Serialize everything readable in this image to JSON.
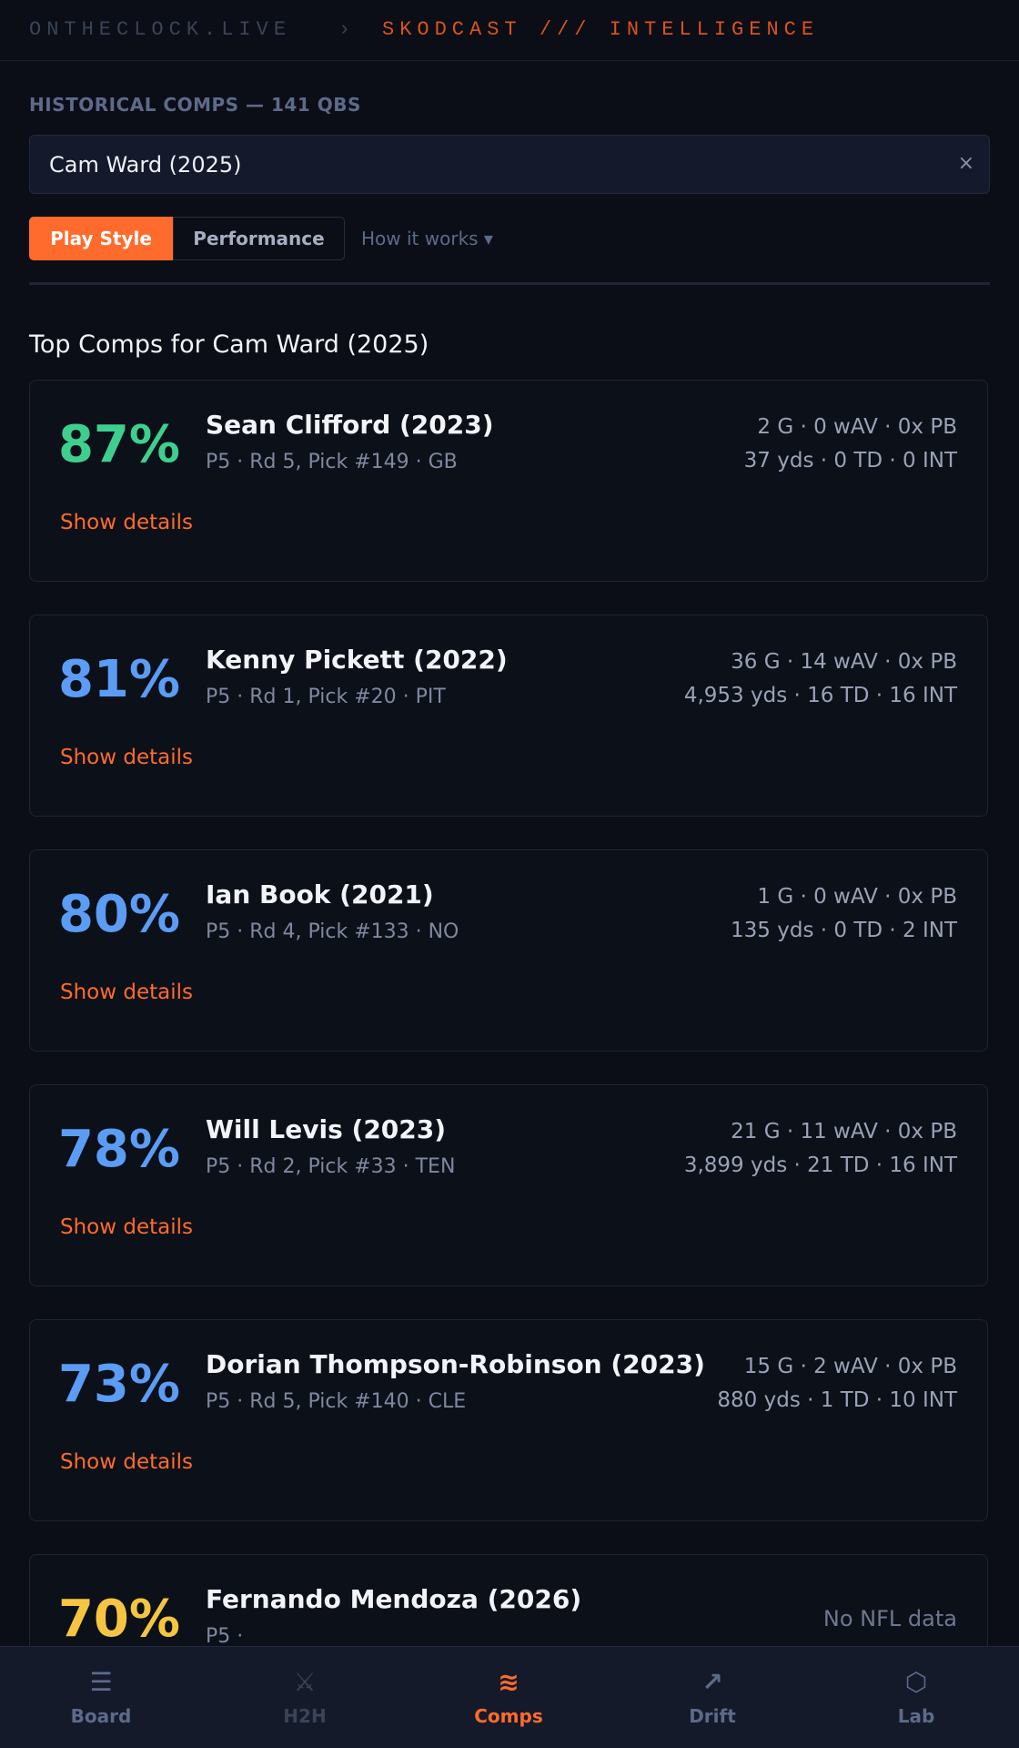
{
  "header": {
    "site": "ONTHECLOCK.LIVE",
    "separator": "›",
    "section": "SKODCAST /// INTELLIGENCE"
  },
  "search": {
    "label": "HISTORICAL COMPS — 141 QBS",
    "value": "Cam Ward (2025)",
    "clear": "×"
  },
  "tabs": {
    "items": [
      "Play Style",
      "Performance"
    ],
    "active": 0,
    "help": "How it works ▾"
  },
  "section_title": "Top Comps for Cam Ward (2025)",
  "comps": [
    {
      "score": "87%",
      "score_color": "#3ecf8e",
      "name": "Sean Clifford (2023)",
      "draft": "P5 · Rd 5, Pick #149 · GB",
      "stats": [
        "2 G · 0 wAV · 0x PB",
        "37 yds · 0 TD · 0 INT"
      ],
      "action": "Show details"
    },
    {
      "score": "81%",
      "score_color": "#5b9cf5",
      "name": "Kenny Pickett (2022)",
      "draft": "P5 · Rd 1, Pick #20 · PIT",
      "stats": [
        "36 G · 14 wAV · 0x PB",
        "4,953 yds · 16 TD · 16 INT"
      ],
      "action": "Show details"
    },
    {
      "score": "80%",
      "score_color": "#5b9cf5",
      "name": "Ian Book (2021)",
      "draft": "P5 · Rd 4, Pick #133 · NO",
      "stats": [
        "1 G · 0 wAV · 0x PB",
        "135 yds · 0 TD · 2 INT"
      ],
      "action": "Show details"
    },
    {
      "score": "78%",
      "score_color": "#5b9cf5",
      "name": "Will Levis (2023)",
      "draft": "P5 · Rd 2, Pick #33 · TEN",
      "stats": [
        "21 G · 11 wAV · 0x PB",
        "3,899 yds · 21 TD · 16 INT"
      ],
      "action": "Show details"
    },
    {
      "score": "73%",
      "score_color": "#5b9cf5",
      "name": "Dorian Thompson-Robinson (2023)",
      "draft": "P5 · Rd 5, Pick #140 · CLE",
      "stats": [
        "15 G · 2 wAV · 0x PB",
        "880 yds · 1 TD · 10 INT"
      ],
      "action": "Show details"
    },
    {
      "score": "70%",
      "score_color": "#f5c542",
      "name": "Fernando Mendoza (2026)",
      "draft": "P5 ·",
      "stats": [
        "No NFL data"
      ]
    }
  ],
  "nav": {
    "active": 2,
    "items": [
      {
        "icon": "☰",
        "label": "Board"
      },
      {
        "icon": "⚔",
        "label": "H2H"
      },
      {
        "icon": "≋",
        "label": "Comps"
      },
      {
        "icon": "↗",
        "label": "Drift"
      },
      {
        "icon": "⬡",
        "label": "Lab"
      }
    ]
  }
}
